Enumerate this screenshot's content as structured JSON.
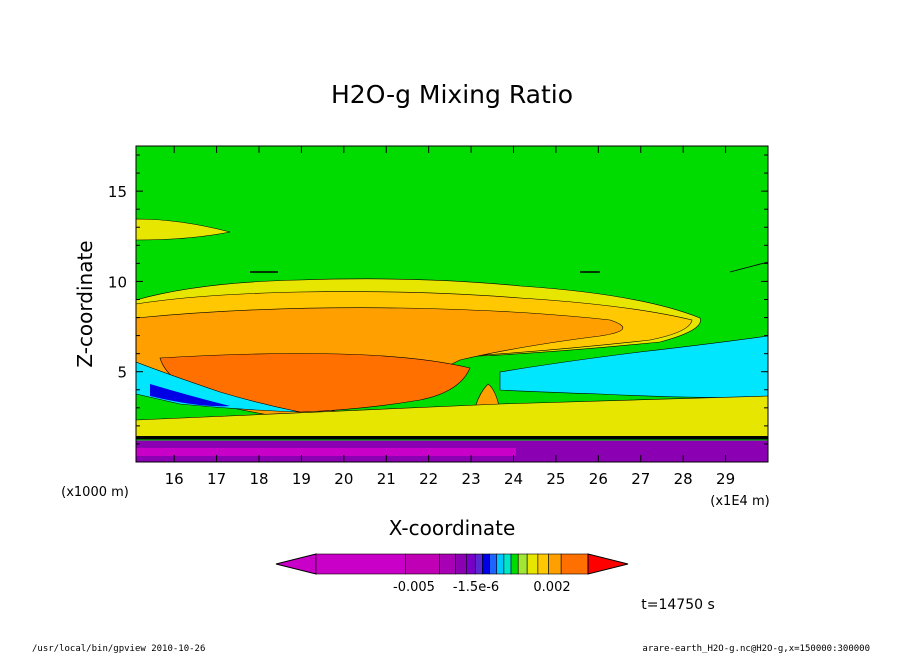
{
  "chart_data": {
    "type": "heatmap",
    "title": "H2O-g Mixing Ratio",
    "xlabel": "X-coordinate",
    "ylabel": "Z-coordinate",
    "x_unit_note": "(x1E4 m)",
    "y_unit_note": "(x1000 m)",
    "x_ticks": [
      "16",
      "17",
      "18",
      "19",
      "20",
      "21",
      "22",
      "23",
      "24",
      "25",
      "26",
      "27",
      "28",
      "29"
    ],
    "x_tick_values": [
      16,
      17,
      18,
      19,
      20,
      21,
      22,
      23,
      24,
      25,
      26,
      27,
      28,
      29
    ],
    "y_ticks": [
      "5",
      "10",
      "15"
    ],
    "y_tick_values": [
      5,
      10,
      15
    ],
    "xlim": [
      15.1,
      30.0
    ],
    "ylim": [
      0,
      17.5
    ],
    "colorbar_labels": [
      "-0.005",
      "-1.5e-6",
      "0.002"
    ],
    "colorbar_colors": [
      "#c800c8",
      "#c000b4",
      "#a800b4",
      "#8c00b4",
      "#7800c8",
      "#5a28d2",
      "#0000e6",
      "#1e64ff",
      "#00c8ff",
      "#00e6c8",
      "#00dc00",
      "#a0e632",
      "#e6e600",
      "#ffc800",
      "#ffa000",
      "#ff7000",
      "#ff0000"
    ],
    "time_label": "t=14750 s",
    "footer_left": "/usr/local/bin/gpview  2010-10-26",
    "footer_right": "arare-earth_H2O-g.nc@H2O-g,x=150000:300000"
  },
  "colors": {
    "background_green": "#00dc00",
    "yellow": "#e6e600",
    "light_orange": "#ffc800",
    "orange": "#ffa000",
    "dark_orange": "#ff7000",
    "cyan": "#00e6ff",
    "blue": "#0000e6",
    "purple": "#8c00b4",
    "magenta": "#c800c8"
  }
}
